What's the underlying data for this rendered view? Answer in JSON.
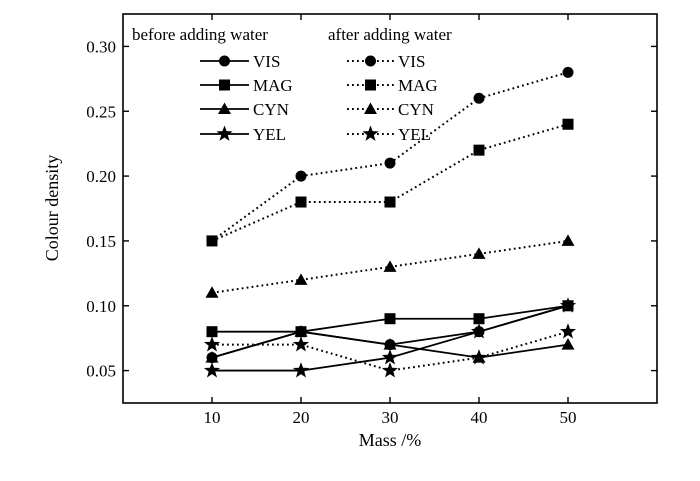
{
  "chart_data": {
    "type": "line",
    "xlabel": "Mass /%",
    "ylabel": "Colour density",
    "x": [
      10,
      20,
      30,
      40,
      50
    ],
    "xlim": [
      0,
      60
    ],
    "ylim": [
      0.025,
      0.325
    ],
    "xticks": [
      10,
      20,
      30,
      40,
      50
    ],
    "xtick_labels": [
      "10",
      "20",
      "30",
      "40",
      "50"
    ],
    "yticks": [
      0.05,
      0.1,
      0.15,
      0.2,
      0.25,
      0.3
    ],
    "ytick_labels": [
      "0.05",
      "0.10",
      "0.15",
      "0.20",
      "0.25",
      "0.30"
    ],
    "grid": false,
    "legend": {
      "placement": "top-left",
      "before_header": "before adding water",
      "after_header": "after adding water"
    },
    "series": [
      {
        "name": "VIS",
        "group": "before",
        "marker": "circle",
        "line": "solid",
        "values": [
          0.06,
          0.08,
          0.07,
          0.08,
          0.1
        ]
      },
      {
        "name": "MAG",
        "group": "before",
        "marker": "square",
        "line": "solid",
        "values": [
          0.08,
          0.08,
          0.09,
          0.09,
          0.1
        ]
      },
      {
        "name": "CYN",
        "group": "before",
        "marker": "triangle",
        "line": "solid",
        "values": [
          0.06,
          0.08,
          0.07,
          0.06,
          0.07
        ]
      },
      {
        "name": "YEL",
        "group": "before",
        "marker": "star",
        "line": "solid",
        "values": [
          0.05,
          0.05,
          0.06,
          0.08,
          0.1
        ]
      },
      {
        "name": "VIS",
        "group": "after",
        "marker": "circle",
        "line": "dotted",
        "values": [
          0.15,
          0.2,
          0.21,
          0.26,
          0.28
        ]
      },
      {
        "name": "MAG",
        "group": "after",
        "marker": "square",
        "line": "dotted",
        "values": [
          0.15,
          0.18,
          0.18,
          0.22,
          0.24
        ]
      },
      {
        "name": "CYN",
        "group": "after",
        "marker": "triangle",
        "line": "dotted",
        "values": [
          0.11,
          0.12,
          0.13,
          0.14,
          0.15
        ]
      },
      {
        "name": "YEL",
        "group": "after",
        "marker": "star",
        "line": "dotted",
        "values": [
          0.07,
          0.07,
          0.05,
          0.06,
          0.08
        ]
      }
    ],
    "colors": {
      "line": "#000000",
      "marker": "#000000",
      "background": "#ffffff"
    }
  }
}
